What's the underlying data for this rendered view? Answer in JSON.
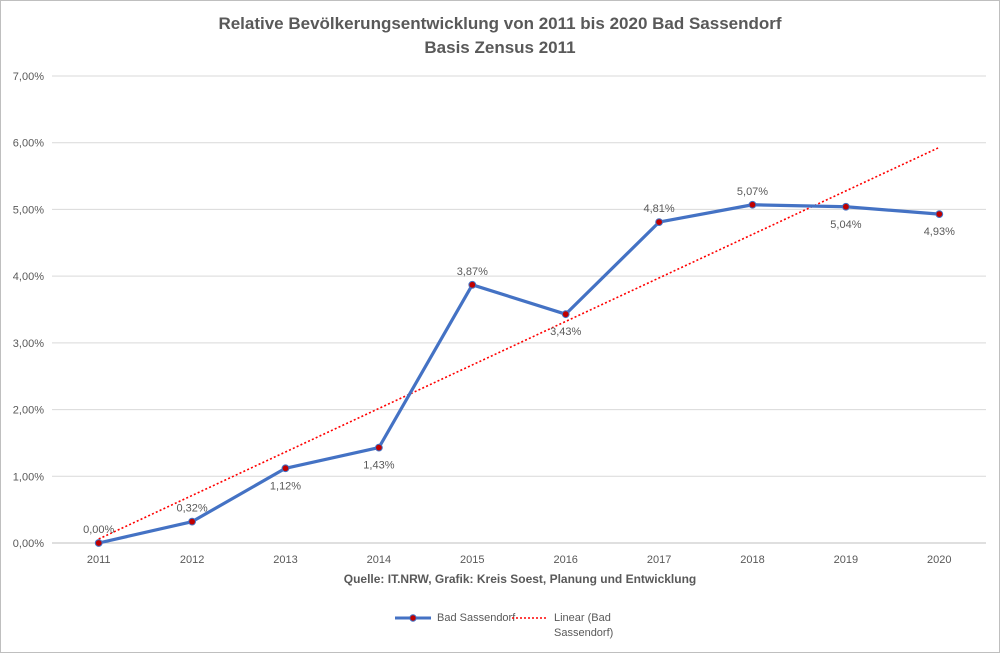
{
  "title": "Relative Bevölkerungsentwicklung von 2011 bis 2020 Bad Sassendorf",
  "subtitle": "Basis Zensus 2011",
  "source_note": "Quelle: IT.NRW, Grafik: Kreis Soest, Planung und Entwicklung",
  "chart_data": {
    "type": "line",
    "title": "Relative Bevölkerungsentwicklung von 2011 bis 2020 Bad Sassendorf",
    "subtitle": "Basis Zensus 2011",
    "xlabel": "Quelle: IT.NRW, Grafik: Kreis Soest, Planung und Entwicklung",
    "ylabel": "",
    "categories": [
      "2011",
      "2012",
      "2013",
      "2014",
      "2015",
      "2016",
      "2017",
      "2018",
      "2019",
      "2020"
    ],
    "ylim": [
      0,
      7
    ],
    "yticks": [
      0,
      1,
      2,
      3,
      4,
      5,
      6,
      7
    ],
    "ytick_labels": [
      "0,00%",
      "1,00%",
      "2,00%",
      "3,00%",
      "4,00%",
      "5,00%",
      "6,00%",
      "7,00%"
    ],
    "grid": true,
    "legend_position": "bottom",
    "series": [
      {
        "name": "Bad Sassendorf",
        "values": [
          0.0,
          0.32,
          1.12,
          1.43,
          3.87,
          3.43,
          4.81,
          5.07,
          5.04,
          4.93
        ],
        "labels": [
          "0,00%",
          "0,32%",
          "1,12%",
          "1,43%",
          "3,87%",
          "3,43%",
          "4,81%",
          "5,07%",
          "5,04%",
          "4,93%"
        ],
        "label_pos": [
          "above",
          "above",
          "below",
          "below",
          "above",
          "below",
          "above",
          "above",
          "below",
          "below"
        ],
        "color": "#4472c4",
        "marker_color": "#c00000",
        "style": "solid"
      },
      {
        "name": "Linear (Bad Sassendorf)",
        "trend_start": 0.06,
        "trend_end": 5.93,
        "color": "#ff0000",
        "style": "dotted"
      }
    ]
  },
  "legend": {
    "items": [
      {
        "label": "Bad Sassendorf"
      },
      {
        "label": "Linear (Bad Sassendorf)"
      }
    ]
  }
}
